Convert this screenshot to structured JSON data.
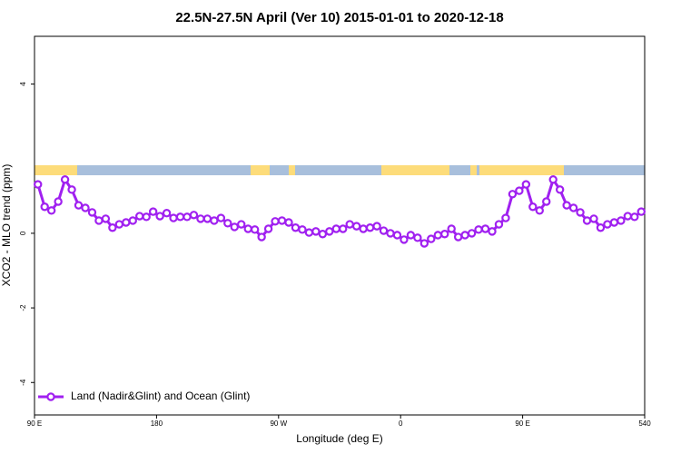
{
  "chart_data": {
    "type": "line",
    "title": "22.5N-27.5N April (Ver 10)   2015-01-01 to 2020-12-18",
    "x_label": "Longitude (deg E)",
    "y_label": "XCO2 - MLO trend (ppm)",
    "xlim": [
      90,
      540
    ],
    "xticks": [
      {
        "value": 90,
        "label": "90 E"
      },
      180,
      {
        "value": 270,
        "label": "90 W"
      },
      {
        "value": 360,
        "label": "0"
      },
      {
        "value": 450,
        "label": "90 E"
      },
      540
    ],
    "ylim": [
      -4.87,
      5.28
    ],
    "yticks": [
      -4,
      -2,
      0,
      4
    ],
    "legend": "bottom-left",
    "series": [
      {
        "name": "Land (Nadir&Glint) and Ocean (Glint)",
        "color": "#a020f0",
        "x": [
          92.5,
          97.5,
          102.5,
          107.5,
          112.5,
          117.5,
          122.5,
          127.5,
          132.5,
          137.5,
          142.5,
          147.5,
          152.5,
          157.5,
          162.5,
          167.5,
          172.5,
          177.5,
          182.5,
          187.5,
          192.5,
          197.5,
          202.5,
          207.5,
          212.5,
          217.5,
          222.5,
          227.5,
          232.5,
          237.5,
          242.5,
          247.5,
          252.5,
          257.5,
          262.5,
          267.5,
          272.5,
          277.5,
          282.5,
          287.5,
          292.5,
          297.5,
          302.5,
          307.5,
          312.5,
          317.5,
          322.5,
          327.5,
          332.5,
          337.5,
          342.5,
          347.5,
          352.5,
          357.5,
          362.5,
          367.5,
          372.5,
          377.5,
          382.5,
          387.5,
          392.5,
          397.5,
          402.5,
          407.5,
          412.5,
          417.5,
          422.5,
          427.5,
          432.5,
          437.5,
          442.5,
          447.5,
          452.5,
          457.5,
          462.5,
          467.5,
          472.5,
          477.5,
          482.5,
          487.5,
          492.5,
          497.5,
          502.5,
          507.5,
          512.5,
          517.5,
          522.5,
          527.5,
          532.5,
          537.5
        ],
        "values": [
          1.31,
          0.71,
          0.61,
          0.85,
          1.44,
          1.17,
          0.75,
          0.68,
          0.56,
          0.34,
          0.39,
          0.15,
          0.24,
          0.29,
          0.34,
          0.46,
          0.44,
          0.58,
          0.46,
          0.54,
          0.41,
          0.44,
          0.44,
          0.49,
          0.39,
          0.39,
          0.34,
          0.41,
          0.27,
          0.17,
          0.24,
          0.12,
          0.1,
          -0.1,
          0.12,
          0.32,
          0.34,
          0.29,
          0.15,
          0.1,
          0.02,
          0.05,
          -0.02,
          0.05,
          0.12,
          0.12,
          0.24,
          0.19,
          0.12,
          0.15,
          0.19,
          0.07,
          0,
          -0.05,
          -0.17,
          -0.05,
          -0.12,
          -0.27,
          -0.15,
          -0.05,
          -0.02,
          0.12,
          -0.1,
          -0.05,
          0,
          0.1,
          0.12,
          0.05,
          0.24,
          0.41,
          1.05,
          1.14,
          1.31,
          0.71,
          0.61,
          0.85,
          1.44,
          1.17,
          0.75,
          0.68,
          0.56,
          0.34,
          0.39,
          0.15,
          0.24,
          0.29,
          0.34,
          0.46,
          0.44,
          0.58
        ]
      }
    ]
  }
}
